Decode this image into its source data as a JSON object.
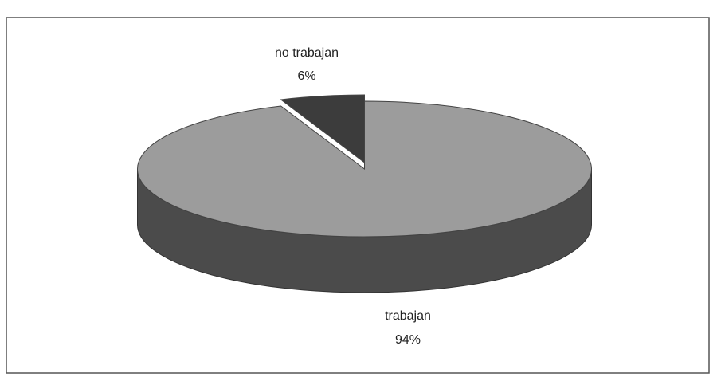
{
  "chart_data": {
    "type": "pie3d",
    "categories": [
      "no trabajan",
      "trabajan"
    ],
    "values": [
      6,
      94
    ],
    "value_labels": [
      "6%",
      "94%"
    ],
    "colors": [
      "#3c3c3c",
      "#9c9c9c"
    ]
  }
}
